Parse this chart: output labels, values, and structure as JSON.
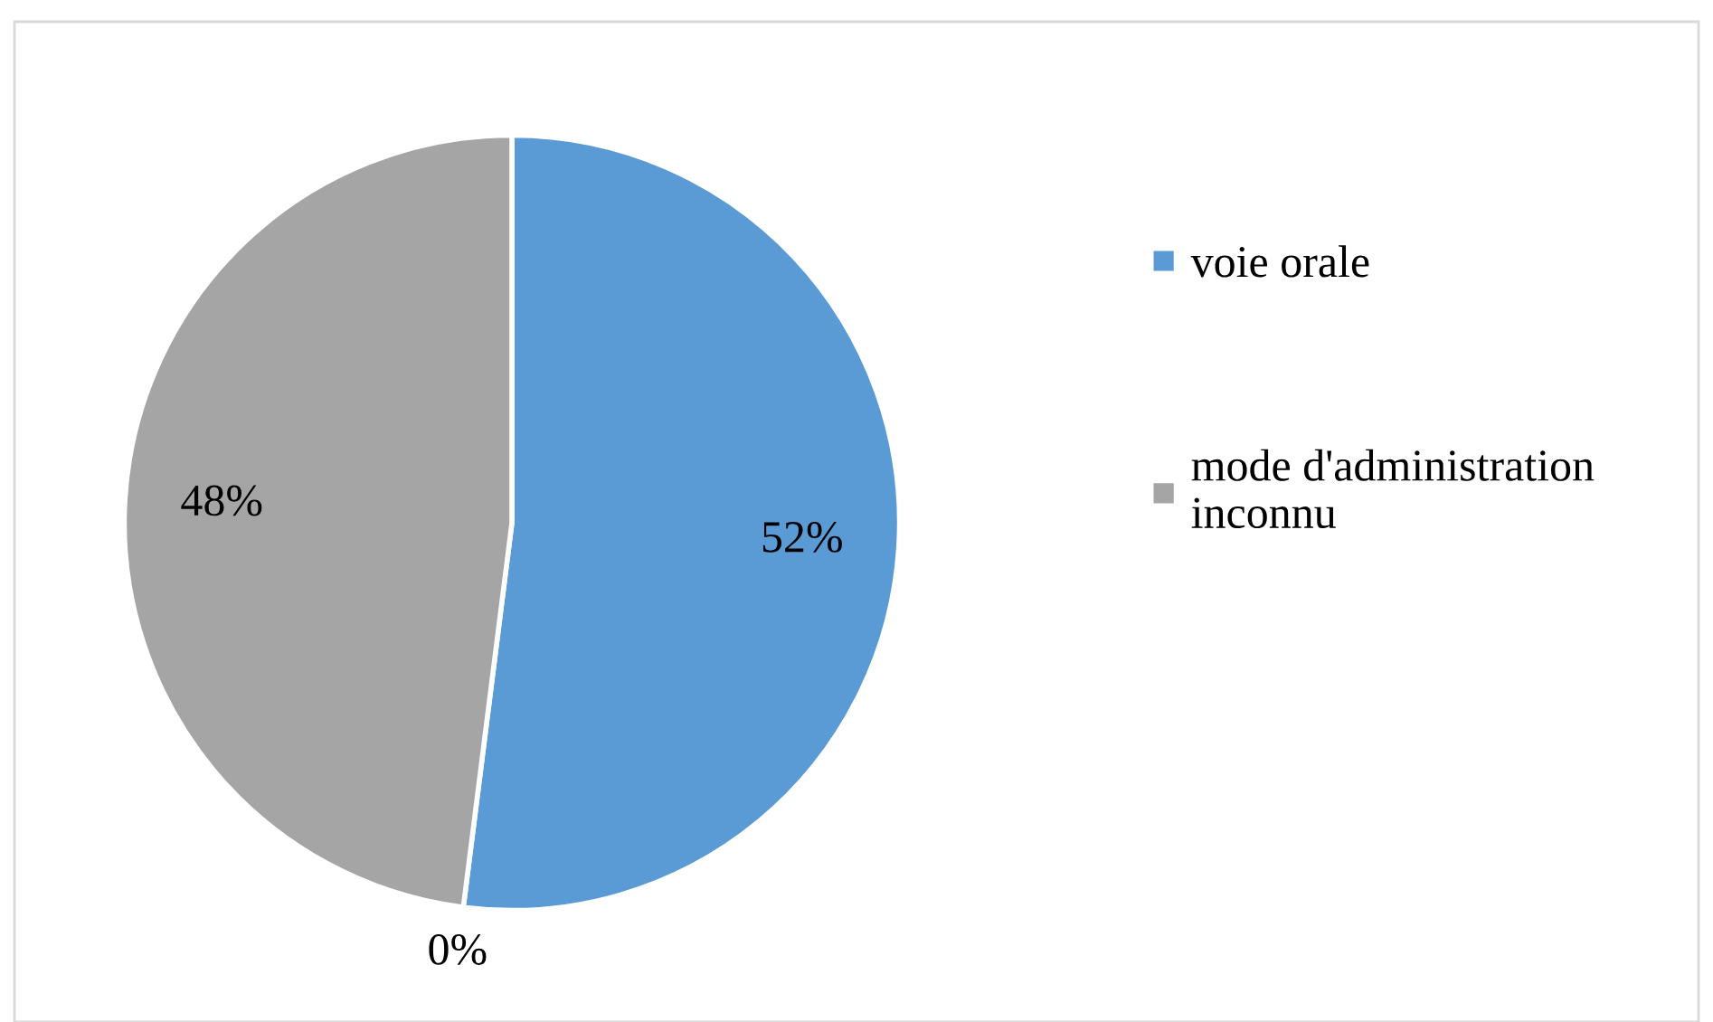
{
  "chart_data": {
    "type": "pie",
    "categories": [
      "voie orale",
      null,
      "mode d'administration inconnu"
    ],
    "values": [
      52,
      0,
      48
    ],
    "colors": [
      "#5b9bd5",
      "#ed7d31",
      "#a5a5a5"
    ],
    "value_labels": [
      "52%",
      "0%",
      "48%"
    ],
    "legend": "right"
  }
}
